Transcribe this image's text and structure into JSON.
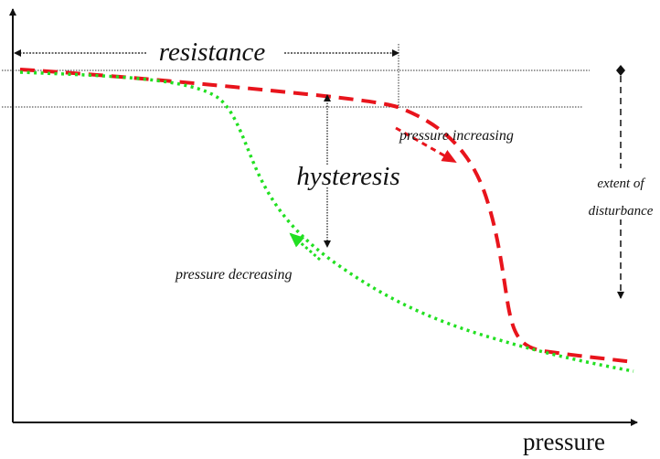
{
  "labels": {
    "resistance": "resistance",
    "hysteresis": "hysteresis",
    "pressure_increasing": "pressure increasing",
    "pressure_decreasing": "pressure decreasing",
    "extent_line1": "extent of",
    "extent_line2": "disturbance",
    "x_axis": "pressure"
  },
  "colors": {
    "increasing": "#e8141c",
    "decreasing": "#22e022",
    "annotation": "#111111"
  }
}
